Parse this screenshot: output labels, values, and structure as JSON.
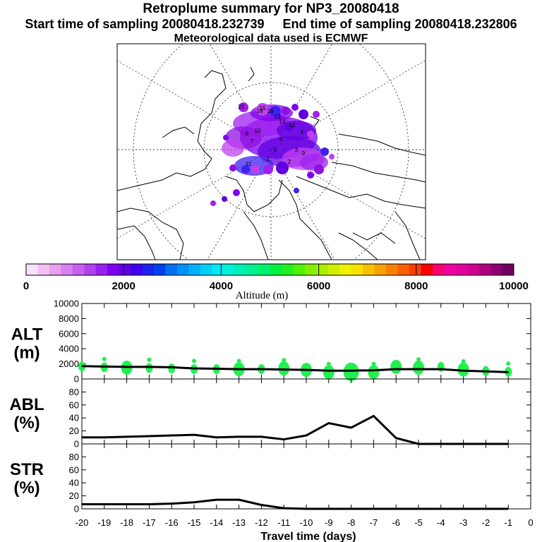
{
  "header": {
    "title": "Retroplume summary for NP3_20080418",
    "start_label": "Start time of sampling 20080418.232739",
    "end_label": "End time of sampling 20080418.232806",
    "met_label": "Meteorological data used is ECMWF"
  },
  "colorbar": {
    "colors": [
      "#f8e0f8",
      "#f0c0f0",
      "#e8a0f0",
      "#d880f0",
      "#c860f0",
      "#b040f0",
      "#9820f0",
      "#8000f0",
      "#6000e0",
      "#4000f0",
      "#2020f0",
      "#0040f0",
      "#0070f0",
      "#0090f8",
      "#00b0f8",
      "#00d0f8",
      "#00e8f0",
      "#00f0d8",
      "#00f0b0",
      "#00f090",
      "#00f070",
      "#00f040",
      "#20f020",
      "#50f000",
      "#80f000",
      "#a8f000",
      "#d0f000",
      "#f0f000",
      "#f8e000",
      "#f8c000",
      "#f8a000",
      "#f88000",
      "#f86000",
      "#f84000",
      "#f80000",
      "#f80070",
      "#f000a0",
      "#e000a0",
      "#d00090",
      "#b00080",
      "#900070",
      "#700060"
    ],
    "ticks": [
      "0",
      "2000",
      "4000",
      "6000",
      "8000",
      "10000"
    ],
    "label": "Altitude (m)"
  },
  "chart_data": [
    {
      "type": "line",
      "panel": "ALT",
      "ylabel": "ALT\n(m)",
      "ylabel_top": "ALT",
      "ylabel_bottom": "(m)",
      "ylim": [
        0,
        10000
      ],
      "yticks": [
        "0",
        "2000",
        "4000",
        "6000",
        "8000",
        "10000"
      ],
      "x": [
        -20,
        -19,
        -18,
        -17,
        -16,
        -15,
        -14,
        -13,
        -12,
        -11,
        -10,
        -9,
        -8,
        -7,
        -6,
        -5,
        -4,
        -3,
        -2,
        -1
      ],
      "values": [
        1700,
        1650,
        1600,
        1600,
        1550,
        1400,
        1350,
        1300,
        1300,
        1250,
        1200,
        1100,
        1100,
        1150,
        1300,
        1300,
        1300,
        1100,
        1000,
        900
      ],
      "plume_markers": [
        1650,
        1550,
        1500,
        1450,
        1400,
        1300,
        1300,
        1300,
        1300,
        1400,
        1200,
        900,
        950,
        900,
        1600,
        1500,
        1600,
        1250,
        1050,
        950
      ],
      "marker_color": "#20f050"
    },
    {
      "type": "line",
      "panel": "ABL",
      "ylabel_top": "ABL",
      "ylabel_bottom": "(%)",
      "ylim": [
        0,
        100
      ],
      "yticks": [
        "0",
        "20",
        "40",
        "60",
        "80"
      ],
      "x": [
        -20,
        -19,
        -18,
        -17,
        -16,
        -15,
        -14,
        -13,
        -12,
        -11,
        -10,
        -9,
        -8,
        -7,
        -6,
        -5,
        -4,
        -3,
        -2,
        -1
      ],
      "values": [
        10,
        10,
        11,
        12,
        13,
        14,
        10,
        11,
        11,
        7,
        13,
        32,
        25,
        43,
        9,
        0,
        0,
        0,
        0,
        0
      ]
    },
    {
      "type": "line",
      "panel": "STR",
      "ylabel_top": "STR",
      "ylabel_bottom": "(%)",
      "ylim": [
        0,
        100
      ],
      "yticks": [
        "0",
        "20",
        "40",
        "60",
        "80"
      ],
      "x": [
        -20,
        -19,
        -18,
        -17,
        -16,
        -15,
        -14,
        -13,
        -12,
        -11,
        -10,
        -9,
        -8,
        -7,
        -6,
        -5,
        -4,
        -3,
        -2,
        -1
      ],
      "values": [
        7,
        7,
        7,
        7,
        8,
        10,
        14,
        14,
        6,
        1,
        0,
        0,
        0,
        0,
        0,
        0,
        0,
        0,
        0,
        0
      ]
    }
  ],
  "xaxis": {
    "ticks": [
      "-20",
      "-19",
      "-18",
      "-17",
      "-16",
      "-15",
      "-14",
      "-13",
      "-12",
      "-11",
      "-10",
      "-9",
      "-8",
      "-7",
      "-6",
      "-5",
      "-4",
      "-3",
      "-2",
      "-1",
      "0"
    ],
    "label": "Travel time (days)"
  },
  "map": {
    "plume_labels": [
      "20",
      "18",
      "16",
      "14",
      "12",
      "10",
      "8",
      "6",
      "4",
      "3",
      "2",
      "1",
      "15",
      "13",
      "11",
      "9",
      "7",
      "5"
    ],
    "plume_colors": [
      "#8000f0",
      "#6000e0",
      "#a020f0",
      "#c040f0",
      "#4020f0",
      "#9010e0"
    ]
  }
}
